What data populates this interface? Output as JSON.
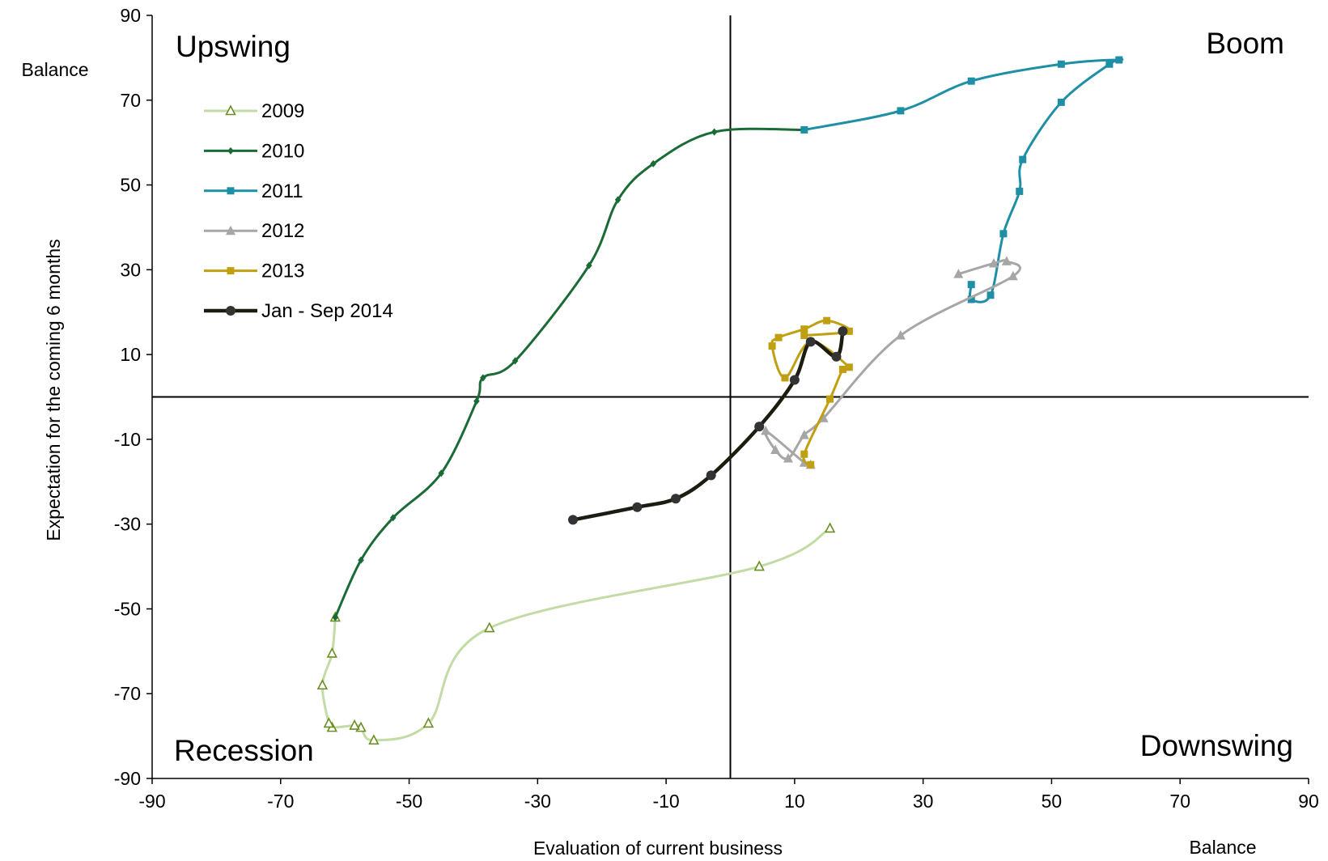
{
  "chart_data": {
    "type": "line",
    "title": "",
    "xlabel": "Evaluation  of current business",
    "ylabel": "Expectation for  the coming 6 months",
    "x_unit_label": "Balance",
    "y_unit_label": "Balance",
    "xlim": [
      -90,
      90
    ],
    "ylim": [
      -90,
      90
    ],
    "xticks": [
      -90,
      -70,
      -50,
      -30,
      -10,
      10,
      30,
      50,
      70,
      90
    ],
    "yticks": [
      -90,
      -70,
      -50,
      -30,
      -10,
      10,
      30,
      50,
      70,
      90
    ],
    "grid": false,
    "legend_position": "upper-left",
    "quadrant_labels": {
      "top_left": "Upswing",
      "top_right": "Boom",
      "bottom_left": "Recession",
      "bottom_right": "Downswing"
    },
    "series": [
      {
        "name": "2009",
        "color": "#c3dba4",
        "marker_color": "#6b8e23",
        "marker": "triangle-open",
        "points": [
          [
            15.5,
            -31
          ],
          [
            4.5,
            -40
          ],
          [
            -37.5,
            -54.5
          ],
          [
            -47,
            -77
          ],
          [
            -55.5,
            -81
          ],
          [
            -57.5,
            -78
          ],
          [
            -58.5,
            -77.5
          ],
          [
            -62,
            -78
          ],
          [
            -62.5,
            -77
          ],
          [
            -63.5,
            -68
          ],
          [
            -62,
            -60.5
          ],
          [
            -61.5,
            -52
          ]
        ]
      },
      {
        "name": "2010",
        "color": "#1a6b35",
        "marker_color": "#1a6b35",
        "marker": "diamond",
        "points": [
          [
            -61.5,
            -52
          ],
          [
            -57.5,
            -38.5
          ],
          [
            -52.5,
            -28.5
          ],
          [
            -45,
            -18
          ],
          [
            -39.5,
            -1
          ],
          [
            -38.5,
            4.5
          ],
          [
            -33.5,
            8.5
          ],
          [
            -22,
            31
          ],
          [
            -17.5,
            46.5
          ],
          [
            -12,
            55
          ],
          [
            -2.5,
            62.5
          ],
          [
            11.5,
            63
          ]
        ]
      },
      {
        "name": "2011",
        "color": "#1f8fa6",
        "marker_color": "#1f8fa6",
        "marker": "square",
        "points": [
          [
            11.5,
            63
          ],
          [
            26.5,
            67.5
          ],
          [
            37.5,
            74.5
          ],
          [
            51.5,
            78.5
          ],
          [
            60.5,
            79.5
          ],
          [
            59,
            78.5
          ],
          [
            51.5,
            69.5
          ],
          [
            45.5,
            56
          ],
          [
            45,
            48.5
          ],
          [
            42.5,
            38.5
          ],
          [
            40.5,
            24
          ],
          [
            37.5,
            23
          ],
          [
            37.5,
            26.5
          ]
        ]
      },
      {
        "name": "2012",
        "color": "#a6a6a6",
        "marker_color": "#a6a6a6",
        "marker": "triangle",
        "points": [
          [
            35.5,
            29
          ],
          [
            41,
            31.5
          ],
          [
            43,
            32
          ],
          [
            44,
            28.5
          ],
          [
            26.5,
            14.5
          ],
          [
            14.5,
            -5
          ],
          [
            11.5,
            -9
          ],
          [
            9,
            -14.5
          ],
          [
            7,
            -12.5
          ],
          [
            5.5,
            -8
          ],
          [
            11.5,
            -15.5
          ],
          [
            12.5,
            -16
          ]
        ]
      },
      {
        "name": "2013",
        "color": "#c0a010",
        "marker_color": "#c0a010",
        "marker": "square",
        "points": [
          [
            12.5,
            -16
          ],
          [
            11.5,
            -13.5
          ],
          [
            15.5,
            -0.5
          ],
          [
            17.5,
            6.5
          ],
          [
            18.5,
            7
          ],
          [
            12.5,
            13
          ],
          [
            8.5,
            4.5
          ],
          [
            6.5,
            12
          ],
          [
            7.5,
            14
          ],
          [
            11.5,
            16
          ],
          [
            15,
            18
          ],
          [
            18.5,
            15.5
          ],
          [
            11.5,
            14.5
          ]
        ]
      },
      {
        "name": "Jan - Sep 2014",
        "color": "#1c1c10",
        "marker_color": "#333333",
        "marker": "circle",
        "points": [
          [
            -24.5,
            -29
          ],
          [
            -14.5,
            -26
          ],
          [
            -8.5,
            -24
          ],
          [
            -3,
            -18.5
          ],
          [
            4.5,
            -7
          ],
          [
            10,
            4
          ],
          [
            12.5,
            13
          ],
          [
            16.5,
            9.5
          ],
          [
            17.5,
            15.5
          ]
        ]
      }
    ]
  }
}
